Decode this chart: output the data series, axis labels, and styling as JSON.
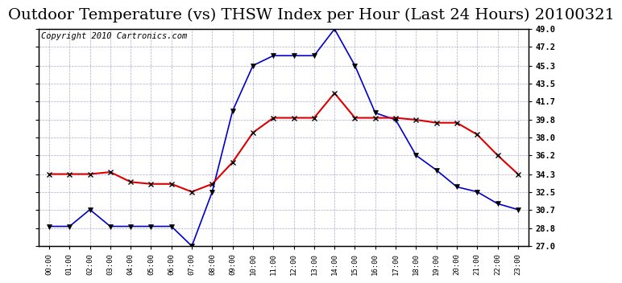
{
  "title": "Outdoor Temperature (vs) THSW Index per Hour (Last 24 Hours) 20100321",
  "copyright": "Copyright 2010 Cartronics.com",
  "hours": [
    "00:00",
    "01:00",
    "02:00",
    "03:00",
    "04:00",
    "05:00",
    "06:00",
    "07:00",
    "08:00",
    "09:00",
    "10:00",
    "11:00",
    "12:00",
    "13:00",
    "14:00",
    "15:00",
    "16:00",
    "17:00",
    "18:00",
    "19:00",
    "20:00",
    "21:00",
    "22:00",
    "23:00"
  ],
  "temp_red": [
    34.3,
    34.3,
    34.3,
    34.5,
    33.5,
    33.3,
    33.3,
    32.5,
    33.3,
    35.5,
    38.5,
    40.0,
    40.0,
    40.0,
    42.5,
    40.0,
    40.0,
    40.0,
    39.8,
    39.5,
    39.5,
    38.3,
    36.2,
    34.3
  ],
  "thsw_blue": [
    29.0,
    29.0,
    30.7,
    29.0,
    29.0,
    29.0,
    29.0,
    27.0,
    32.5,
    40.7,
    45.3,
    46.3,
    46.3,
    46.3,
    49.0,
    45.3,
    40.5,
    39.8,
    36.2,
    34.7,
    33.0,
    32.5,
    31.3,
    30.7
  ],
  "ylim_min": 27.0,
  "ylim_max": 49.0,
  "yticks": [
    27.0,
    28.8,
    30.7,
    32.5,
    34.3,
    36.2,
    38.0,
    39.8,
    41.7,
    43.5,
    45.3,
    47.2,
    49.0
  ],
  "red_color": "#dd0000",
  "blue_color": "#0000cc",
  "grid_color": "#aaaacc",
  "bg_color": "#ffffff",
  "title_fontsize": 14,
  "copyright_fontsize": 7.5
}
